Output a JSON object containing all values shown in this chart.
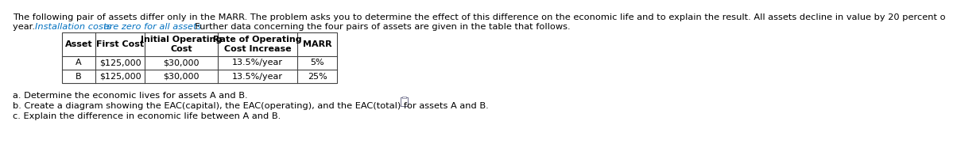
{
  "line1": "The following pair of assets differ only in the MARR. The problem asks you to determine the effect of this difference on the economic life and to explain the result. All assets decline in value by 20 percent o",
  "line2_blue1": "year. Installation costs",
  "line2_blue2": " are zero for all assets",
  "line2_black": ". Further data concerning the four pairs of assets are given in the table that follows.",
  "table_col_labels": [
    "Asset",
    "First Cost",
    "Initial Operating\nCost",
    "Rate of Operating\nCost Increase",
    "MARR"
  ],
  "table_rows": [
    [
      "A",
      "$125,000",
      "$30,000",
      "13.5%/year",
      "5%"
    ],
    [
      "B",
      "$125,000",
      "$30,000",
      "13.5%/year",
      "25%"
    ]
  ],
  "bullet_a": "a. Determine the economic lives for assets A and B.",
  "bullet_b": "b. Create a diagram showing the EAC(capital), the EAC(operating), and the EAC(total) for assets A and B.",
  "bullet_c": "c. Explain the difference in economic life between A and B.",
  "bg_color": "#ffffff",
  "text_color": "#000000",
  "blue_color": "#0070c0",
  "font_size": 8.2,
  "table_font_size": 8.0
}
